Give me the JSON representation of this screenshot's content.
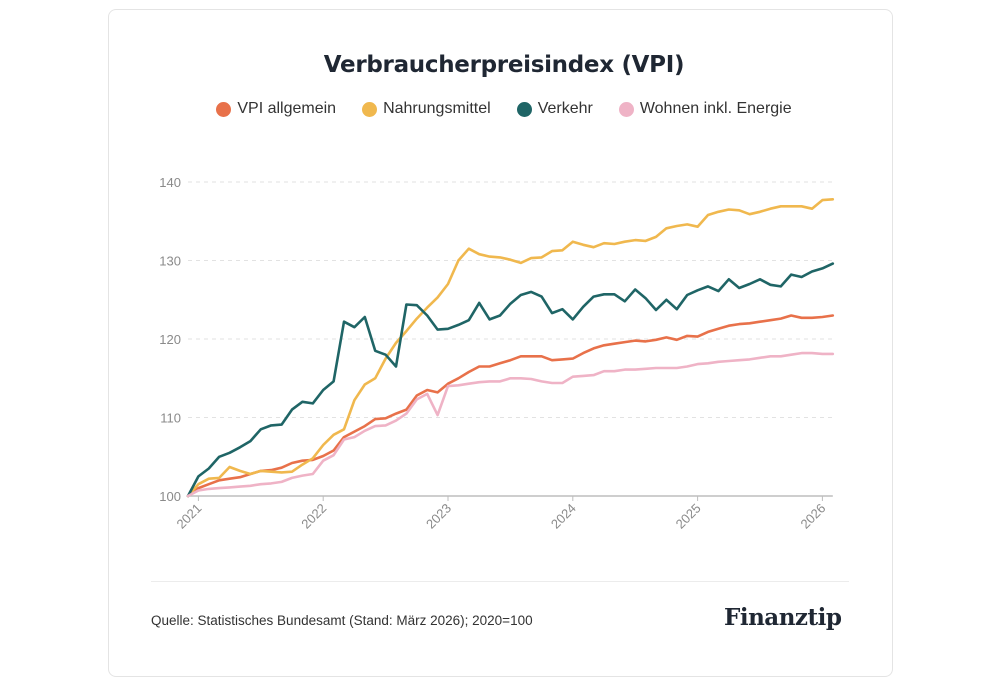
{
  "chart_data": {
    "type": "line",
    "title": "Verbraucherpreisindex (VPI)",
    "xlabel": "",
    "ylabel": "",
    "ylim": [
      100,
      140
    ],
    "yticks": [
      100,
      110,
      120,
      130,
      140
    ],
    "xticks": [
      "2021",
      "2022",
      "2023",
      "2024",
      "2025",
      "2026"
    ],
    "grid": "horizontal dashed",
    "legend_placement": "top",
    "x_start": "2020-12",
    "x_end": "2026-02",
    "x_interval": "monthly",
    "series": [
      {
        "name": "VPI allgemein",
        "color": "#e8714a",
        "values": [
          100,
          101,
          101.5,
          102,
          102.2,
          102.4,
          102.8,
          103.2,
          103.3,
          103.6,
          104.2,
          104.5,
          104.6,
          105.1,
          105.8,
          107.5,
          108.2,
          108.9,
          109.8,
          109.9,
          110.5,
          111,
          112.8,
          113.5,
          113.2,
          114.3,
          115,
          115.8,
          116.5,
          116.5,
          116.9,
          117.3,
          117.8,
          117.8,
          117.8,
          117.3,
          117.4,
          117.5,
          118.2,
          118.8,
          119.2,
          119.4,
          119.6,
          119.8,
          119.7,
          119.9,
          120.2,
          119.9,
          120.4,
          120.3,
          120.9,
          121.3,
          121.7,
          121.9,
          122,
          122.2,
          122.4,
          122.6,
          123,
          122.7,
          122.7,
          122.8,
          123
        ]
      },
      {
        "name": "Nahrungsmittel",
        "color": "#f0b84e",
        "values": [
          100,
          101.5,
          102.2,
          102.3,
          103.7,
          103.2,
          102.8,
          103.2,
          103.1,
          103,
          103.1,
          104,
          104.8,
          106.5,
          107.8,
          108.5,
          112.2,
          114.2,
          115,
          117.5,
          119.5,
          121,
          122.6,
          124,
          125.3,
          127,
          130,
          131.5,
          130.8,
          130.5,
          130.4,
          130.1,
          129.7,
          130.3,
          130.4,
          131.2,
          131.3,
          132.4,
          132,
          131.7,
          132.2,
          132.1,
          132.4,
          132.6,
          132.5,
          133,
          134.1,
          134.4,
          134.6,
          134.3,
          135.8,
          136.2,
          136.5,
          136.4,
          135.9,
          136.2,
          136.6,
          136.9,
          136.9,
          136.9,
          136.6,
          137.7,
          137.8
        ]
      },
      {
        "name": "Verkehr",
        "color": "#1f6566",
        "values": [
          100,
          102.5,
          103.5,
          105,
          105.5,
          106.2,
          107,
          108.5,
          109,
          109.1,
          111,
          112,
          111.8,
          113.5,
          114.6,
          122.2,
          121.5,
          122.8,
          118.5,
          118,
          116.5,
          124.4,
          124.3,
          123,
          121.2,
          121.3,
          121.8,
          122.4,
          124.6,
          122.5,
          123,
          124.5,
          125.6,
          126,
          125.4,
          123.3,
          123.8,
          122.5,
          124.1,
          125.4,
          125.7,
          125.7,
          124.8,
          126.3,
          125.2,
          123.7,
          125,
          123.8,
          125.6,
          126.2,
          126.7,
          126.1,
          127.6,
          126.5,
          127,
          127.6,
          126.9,
          126.7,
          128.2,
          127.9,
          128.6,
          129,
          129.6
        ]
      },
      {
        "name": "Wohnen inkl. Energie",
        "color": "#efb3c6",
        "values": [
          100,
          100.7,
          100.9,
          101,
          101.1,
          101.2,
          101.3,
          101.5,
          101.6,
          101.8,
          102.3,
          102.6,
          102.8,
          104.5,
          105.2,
          107.2,
          107.5,
          108.3,
          108.9,
          109,
          109.6,
          110.5,
          112.3,
          113,
          110.3,
          114,
          114.1,
          114.3,
          114.5,
          114.6,
          114.6,
          115,
          115,
          114.9,
          114.6,
          114.4,
          114.4,
          115.2,
          115.3,
          115.4,
          115.9,
          115.9,
          116.1,
          116.1,
          116.2,
          116.3,
          116.3,
          116.3,
          116.5,
          116.8,
          116.9,
          117.1,
          117.2,
          117.3,
          117.4,
          117.6,
          117.8,
          117.8,
          118,
          118.2,
          118.2,
          118.1,
          118.1
        ]
      }
    ]
  },
  "footer": {
    "source": "Quelle: Statistisches Bundesamt (Stand: März 2026); 2020=100",
    "logo": "Finanztip"
  }
}
